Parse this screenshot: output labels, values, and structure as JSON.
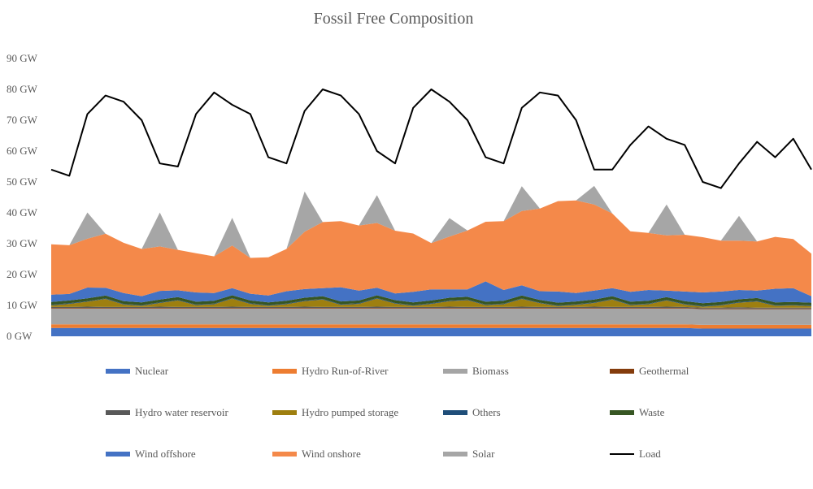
{
  "chart_data": {
    "type": "area",
    "title": "Fossil Free Composition",
    "xlabel": "",
    "ylabel": "",
    "ylim": [
      0,
      90
    ],
    "y_ticks": [
      "0 GW",
      "10 GW",
      "20 GW",
      "30 GW",
      "40 GW",
      "50 GW",
      "60 GW",
      "70 GW",
      "80 GW",
      "90 GW"
    ],
    "grid": false,
    "legend_position": "bottom",
    "x": [
      0,
      4,
      8,
      12,
      16,
      20,
      24,
      28,
      32,
      36,
      40,
      44,
      48,
      52,
      56,
      60,
      64,
      68,
      72,
      76,
      80,
      84,
      88,
      92,
      96,
      100,
      104,
      108,
      112,
      116,
      120,
      124,
      128,
      132,
      136,
      140,
      144,
      148,
      152,
      156,
      160,
      164,
      168
    ],
    "series": [
      {
        "name": "Nuclear",
        "kind": "area",
        "color": "#4472C4",
        "values": [
          2.7,
          2.7,
          2.7,
          2.7,
          2.7,
          2.7,
          2.7,
          2.7,
          2.7,
          2.7,
          2.7,
          2.7,
          2.7,
          2.7,
          2.7,
          2.7,
          2.7,
          2.7,
          2.7,
          2.7,
          2.7,
          2.7,
          2.7,
          2.7,
          2.7,
          2.7,
          2.7,
          2.7,
          2.7,
          2.7,
          2.7,
          2.7,
          2.7,
          2.7,
          2.7,
          2.7,
          2.5,
          2.5,
          2.5,
          2.5,
          2.5,
          2.5,
          2.5
        ]
      },
      {
        "name": "Hydro Run-of-River",
        "kind": "area",
        "color": "#ED7D31",
        "values": [
          1.2,
          1.2,
          1.2,
          1.2,
          1.2,
          1.2,
          1.2,
          1.2,
          1.2,
          1.2,
          1.2,
          1.2,
          1.2,
          1.2,
          1.2,
          1.2,
          1.2,
          1.2,
          1.2,
          1.2,
          1.2,
          1.2,
          1.2,
          1.2,
          1.2,
          1.2,
          1.2,
          1.2,
          1.2,
          1.2,
          1.2,
          1.2,
          1.2,
          1.2,
          1.2,
          1.2,
          1.2,
          1.2,
          1.2,
          1.2,
          1.2,
          1.2,
          1.2
        ]
      },
      {
        "name": "Biomass",
        "kind": "area",
        "color": "#A5A5A5",
        "values": [
          5.1,
          5.1,
          5.1,
          5.1,
          5.1,
          5.1,
          5.1,
          5.1,
          5.1,
          5.1,
          5.1,
          5.1,
          5.1,
          5.1,
          5.1,
          5.1,
          5.1,
          5.1,
          5.1,
          5.1,
          5.1,
          5.1,
          5.1,
          5.1,
          5.1,
          5.1,
          5.1,
          5.1,
          5.1,
          5.1,
          5.1,
          5.1,
          5.1,
          5.1,
          5.1,
          5.1,
          5.1,
          5.1,
          5.1,
          5.1,
          5.1,
          5.1,
          5.1
        ]
      },
      {
        "name": "Geothermal",
        "kind": "area",
        "color": "#843C0C",
        "values": [
          0.2,
          0.2,
          0.2,
          0.2,
          0.2,
          0.2,
          0.2,
          0.2,
          0.2,
          0.2,
          0.2,
          0.2,
          0.2,
          0.2,
          0.2,
          0.2,
          0.2,
          0.2,
          0.2,
          0.2,
          0.2,
          0.2,
          0.2,
          0.2,
          0.2,
          0.2,
          0.2,
          0.2,
          0.2,
          0.2,
          0.2,
          0.2,
          0.2,
          0.2,
          0.2,
          0.2,
          0.2,
          0.2,
          0.2,
          0.2,
          0.2,
          0.2,
          0.2
        ]
      },
      {
        "name": "Hydro water reservoir",
        "kind": "area",
        "color": "#595959",
        "values": [
          0.3,
          0.3,
          0.4,
          0.3,
          0.3,
          0.3,
          0.4,
          0.3,
          0.3,
          0.3,
          0.4,
          0.3,
          0.3,
          0.3,
          0.4,
          0.3,
          0.3,
          0.3,
          0.4,
          0.3,
          0.3,
          0.3,
          0.4,
          0.3,
          0.3,
          0.3,
          0.4,
          0.3,
          0.3,
          0.3,
          0.4,
          0.3,
          0.3,
          0.3,
          0.4,
          0.3,
          0.3,
          0.3,
          0.4,
          0.3,
          0.3,
          0.3,
          0.3
        ]
      },
      {
        "name": "Hydro pumped storage",
        "kind": "area",
        "color": "#9E7F0F",
        "values": [
          0.5,
          1.0,
          1.6,
          2.6,
          0.8,
          0.4,
          1.2,
          2.1,
          0.6,
          0.9,
          2.6,
          1.0,
          0.4,
          0.9,
          1.8,
          2.4,
          0.7,
          1.0,
          2.6,
          1.1,
          0.4,
          1.0,
          1.8,
          2.2,
          0.6,
          0.9,
          2.5,
          1.2,
          0.3,
          0.7,
          1.2,
          2.4,
          0.6,
          0.9,
          2.0,
          0.8,
          0.3,
          0.7,
          1.5,
          2.0,
          0.6,
          0.7,
          0.5
        ]
      },
      {
        "name": "Others",
        "kind": "area",
        "color": "#1F4E79",
        "values": [
          0.2,
          0.2,
          0.2,
          0.2,
          0.2,
          0.2,
          0.2,
          0.2,
          0.2,
          0.2,
          0.2,
          0.2,
          0.2,
          0.2,
          0.2,
          0.2,
          0.2,
          0.2,
          0.2,
          0.2,
          0.2,
          0.2,
          0.2,
          0.2,
          0.2,
          0.2,
          0.2,
          0.2,
          0.2,
          0.2,
          0.2,
          0.2,
          0.2,
          0.2,
          0.2,
          0.2,
          0.2,
          0.2,
          0.2,
          0.2,
          0.2,
          0.2,
          0.2
        ]
      },
      {
        "name": "Waste",
        "kind": "area",
        "color": "#375623",
        "values": [
          0.9,
          0.9,
          0.9,
          0.9,
          0.9,
          0.9,
          0.9,
          0.9,
          0.9,
          0.9,
          0.9,
          0.9,
          0.9,
          0.9,
          0.9,
          0.9,
          0.9,
          0.9,
          0.9,
          0.9,
          0.9,
          0.9,
          0.9,
          0.9,
          0.9,
          0.9,
          0.9,
          0.9,
          0.9,
          0.9,
          0.9,
          0.9,
          0.9,
          0.9,
          0.9,
          0.9,
          0.9,
          0.9,
          0.9,
          0.9,
          0.9,
          0.9,
          0.9
        ]
      },
      {
        "name": "Wind offshore",
        "kind": "area",
        "color": "#4472C4",
        "values": [
          2.4,
          2.1,
          3.5,
          2.5,
          2.6,
          2.0,
          2.8,
          2.2,
          3.0,
          2.5,
          2.3,
          2.2,
          2.2,
          3.1,
          2.8,
          2.6,
          4.6,
          3.2,
          2.4,
          2.2,
          3.4,
          3.6,
          2.7,
          2.4,
          6.6,
          3.5,
          3.3,
          2.8,
          3.6,
          2.7,
          2.9,
          2.6,
          3.2,
          3.5,
          2.1,
          3.1,
          3.5,
          3.4,
          3.0,
          2.4,
          4.4,
          4.5,
          2.1
        ]
      },
      {
        "name": "Wind onshore",
        "kind": "area",
        "color": "#F4894A",
        "values": [
          16.3,
          15.8,
          15.8,
          17.5,
          16.3,
          15.3,
          14.4,
          13.1,
          12.7,
          11.9,
          13.8,
          11.6,
          12.4,
          13.7,
          18.6,
          21.4,
          21.4,
          21.1,
          21.0,
          20.3,
          18.9,
          15.0,
          17.1,
          19.1,
          19.3,
          22.3,
          24.1,
          26.8,
          29.3,
          30.0,
          27.9,
          24.2,
          19.6,
          18.5,
          17.9,
          18.4,
          17.9,
          16.5,
          16.0,
          15.9,
          16.8,
          15.9,
          13.8
        ]
      },
      {
        "name": "Solar",
        "kind": "area",
        "color": "#A6A6A6",
        "values": [
          0,
          0,
          8.5,
          0,
          0,
          0,
          11.0,
          0,
          0,
          0,
          9.0,
          0,
          0,
          0,
          13.0,
          0,
          0,
          0,
          9.0,
          0,
          0,
          0,
          6.0,
          0,
          0,
          0,
          8.0,
          0,
          0,
          0,
          6.0,
          0,
          0,
          0,
          10.0,
          0,
          0,
          0,
          8.0,
          0,
          0,
          0,
          0
        ]
      },
      {
        "name": "Load",
        "kind": "line",
        "color": "#000000",
        "values": [
          54,
          52,
          72,
          78,
          76,
          70,
          56,
          55,
          72,
          79,
          75,
          72,
          58,
          56,
          73,
          80,
          78,
          72,
          60,
          56,
          74,
          80,
          76,
          70,
          58,
          56,
          74,
          79,
          78,
          70,
          54,
          54,
          62,
          68,
          64,
          62,
          50,
          48,
          56,
          63,
          58,
          64,
          54
        ]
      }
    ]
  }
}
